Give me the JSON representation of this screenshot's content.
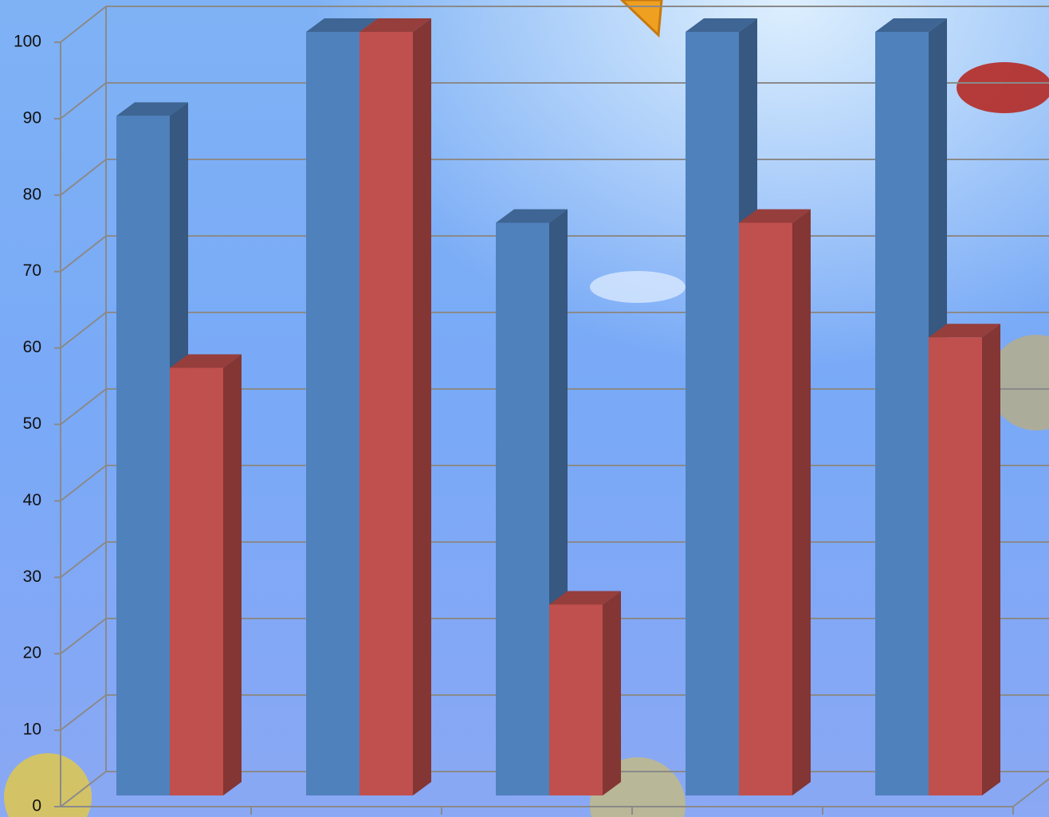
{
  "chart_data": {
    "type": "bar3d",
    "categories": [
      null,
      null,
      null,
      null,
      null
    ],
    "series": [
      {
        "color": "#4f81bd",
        "values": [
          89,
          100,
          75,
          100,
          100
        ]
      },
      {
        "color": "#c0504d",
        "values": [
          56,
          100,
          25,
          75,
          60
        ]
      }
    ],
    "ylim": [
      0,
      100
    ],
    "yticks": [
      0,
      10,
      20,
      30,
      40,
      50,
      60,
      70,
      80,
      90,
      100
    ],
    "grid": true
  }
}
